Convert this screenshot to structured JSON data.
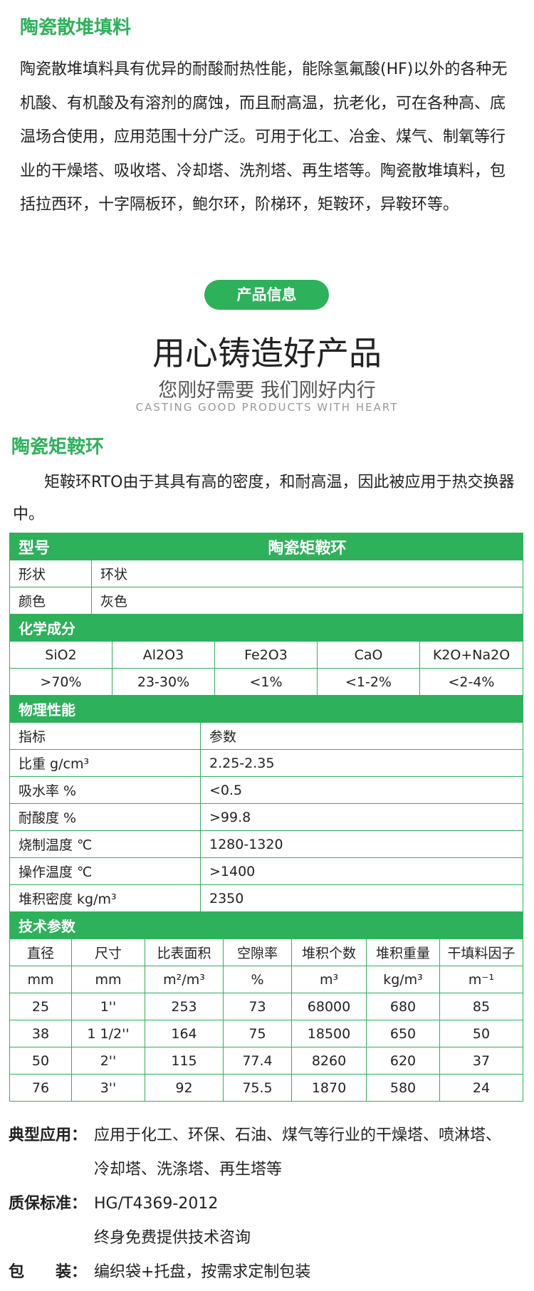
{
  "section1": {
    "title": "陶瓷散堆填料",
    "paragraph": "陶瓷散堆填料具有优异的耐酸耐热性能，能除氢氟酸(HF)以外的各种无机酸、有机酸及有溶剂的腐蚀，而且耐高温，抗老化，可在各种高、底温场合使用，应用范围十分广泛。可用于化工、冶金、煤气、制氧等行业的干燥塔、吸收塔、冷却塔、洗剂塔、再生塔等。陶瓷散堆填料，包括拉西环，十字隔板环，鲍尔环，阶梯环，矩鞍环，异鞍环等。"
  },
  "banner": {
    "badge": "产品信息",
    "headline": "用心铸造好产品",
    "subheadline": "您刚好需要 我们刚好内行",
    "english": "CASTING GOOD PRODUCTS WITH HEART"
  },
  "section2": {
    "title": "陶瓷矩鞍环",
    "intro": "矩鞍环RTO由于其具有高的密度，和耐高温，因此被应用于热交换器中。"
  },
  "table": {
    "model": [
      "型号",
      "陶瓷矩鞍环"
    ],
    "basic": [
      [
        "形状",
        "环状"
      ],
      [
        "颜色",
        "灰色"
      ]
    ],
    "chem_title": "化学成分",
    "chem_header": [
      "SiO2",
      "Al2O3",
      "Fe2O3",
      "CaO",
      "K2O+Na2O"
    ],
    "chem_values": [
      ">70%",
      "23-30%",
      "<1%",
      "<1-2%",
      "<2-4%"
    ],
    "phys_title": "物理性能",
    "phys_rows": [
      [
        "指标",
        "参数"
      ],
      [
        "比重 g/cm³",
        "2.25-2.35"
      ],
      [
        "吸水率 %",
        "<0.5"
      ],
      [
        "耐酸度 %",
        ">99.8"
      ],
      [
        "烧制温度 ℃",
        "1280-1320"
      ],
      [
        "操作温度 ℃",
        ">1400"
      ],
      [
        "堆积密度 kg/m³",
        "2350"
      ]
    ],
    "tech_title": "技术参数",
    "tech_header": [
      "直径",
      "尺寸",
      "比表面积",
      "空隙率",
      "堆积个数",
      "堆积重量",
      "干填料因子"
    ],
    "tech_units": [
      "mm",
      "mm",
      "m²/m³",
      "%",
      "m³",
      "kg/m³",
      "m⁻¹"
    ],
    "tech_rows": [
      [
        25,
        "1''",
        253,
        73,
        68000,
        680,
        85
      ],
      [
        38,
        "1 1/2''",
        164,
        75,
        18500,
        650,
        50
      ],
      [
        50,
        "2''",
        115,
        77.4,
        8260,
        620,
        37
      ],
      [
        76,
        "3''",
        92,
        75.5,
        1870,
        580,
        24
      ]
    ]
  },
  "footer": [
    {
      "label": "典型应用：",
      "lines": [
        "应用于化工、环保、石油、煤气等行业的干燥塔、喷淋塔、",
        "冷却塔、洗涤塔、再生塔等"
      ]
    },
    {
      "label": "质保标准：",
      "lines": [
        "HG/T4369-2012",
        "终身免费提供技术咨询"
      ]
    },
    {
      "label": "包　　装：",
      "lines": [
        "编织袋+托盘，按需求定制包装"
      ]
    }
  ]
}
